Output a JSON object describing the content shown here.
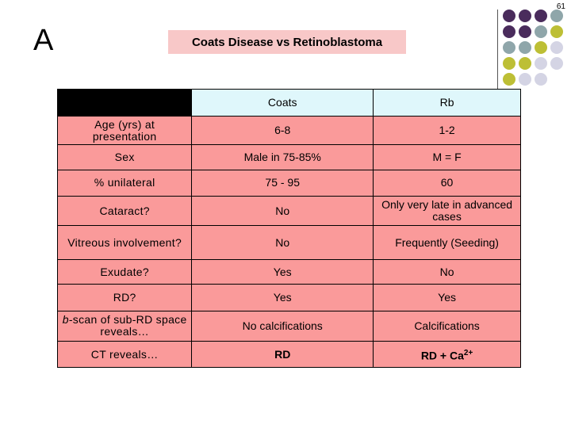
{
  "page_number": "61",
  "section_letter": "A",
  "title": "Coats Disease vs Retinoblastoma",
  "colors": {
    "title_bg": "#f8c8c8",
    "header_bg": "#dff7fb",
    "cell_bg": "#fa9a9a",
    "dot_purple": "#4a2c5c",
    "dot_teal": "#8fa6aa",
    "dot_olive": "#bdbf35",
    "dot_lavender": "#d4d4e4"
  },
  "table": {
    "columns": [
      "Coats",
      "Rb"
    ],
    "rows": [
      {
        "label": "Age (yrs) at presentation",
        "coats": "6-8",
        "rb": "1-2"
      },
      {
        "label": "Sex",
        "coats": "Male in 75-85%",
        "rb": "M = F"
      },
      {
        "label": "% unilateral",
        "coats": "75 - 95",
        "rb": "60"
      },
      {
        "label": "Cataract?",
        "coats": "No",
        "rb": "Only very late in advanced cases"
      },
      {
        "label": "Vitreous involvement?",
        "coats": "No",
        "rb": "Frequently (Seeding)"
      },
      {
        "label": "Exudate?",
        "coats": "Yes",
        "rb": "No"
      },
      {
        "label": "RD?",
        "coats": "Yes",
        "rb": "Yes"
      },
      {
        "label_italic": "b",
        "label_rest": "-scan of sub-RD space reveals…",
        "coats": "No calcifications",
        "rb": "Calcifications"
      },
      {
        "label": "CT reveals…",
        "coats": "RD",
        "rb_main": "RD + Ca",
        "rb_sup": "2+"
      }
    ]
  }
}
